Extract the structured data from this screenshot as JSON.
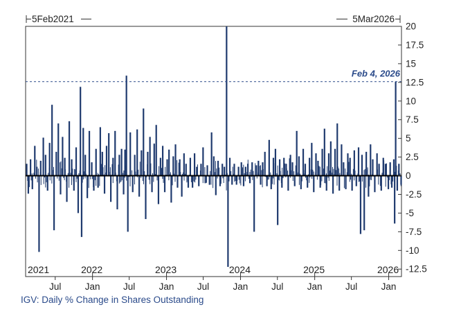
{
  "chart_data": {
    "type": "bar",
    "title": "IGV: Daily % Change in Shares Outstanding",
    "xlabel": "",
    "ylabel": "",
    "ylim": [
      -13.5,
      20
    ],
    "x_range": [
      "2021-02-05",
      "2026-03-05"
    ],
    "range_start_label": "5Feb2021",
    "range_end_label": "5Mar2026",
    "y_ticks": [
      20,
      17.5,
      15,
      12.5,
      10,
      7.5,
      5,
      2.5,
      0,
      -2.5,
      -5,
      -7.5,
      -10,
      -12.5
    ],
    "y_tick_labels": [
      "20",
      "17.5",
      "15",
      "12.5",
      "10",
      "7.5",
      "5",
      "2.5",
      "0",
      "-2.5",
      "-5",
      "-7.5",
      "-10",
      "-12.5"
    ],
    "year_labels": [
      {
        "label": "2021",
        "date": "2021-02-05"
      },
      {
        "label": "2022",
        "date": "2022-01-01"
      },
      {
        "label": "2023",
        "date": "2023-01-01"
      },
      {
        "label": "2024",
        "date": "2024-01-01"
      },
      {
        "label": "2025",
        "date": "2025-01-01"
      },
      {
        "label": "2026",
        "date": "2026-01-01"
      }
    ],
    "month_ticks": [
      {
        "label": "Jul",
        "date": "2021-07-01"
      },
      {
        "label": "Jan",
        "date": "2022-01-01"
      },
      {
        "label": "Jul",
        "date": "2022-07-01"
      },
      {
        "label": "Jan",
        "date": "2023-01-01"
      },
      {
        "label": "Jul",
        "date": "2023-07-01"
      },
      {
        "label": "Jan",
        "date": "2024-01-01"
      },
      {
        "label": "Jul",
        "date": "2024-07-01"
      },
      {
        "label": "Jan",
        "date": "2025-01-01"
      },
      {
        "label": "Jul",
        "date": "2025-07-01"
      },
      {
        "label": "Jan",
        "date": "2026-01-01"
      }
    ],
    "reference_line": {
      "value": 12.6,
      "label": "Feb 4, 2026"
    },
    "series": [
      {
        "name": "Daily % Change in Shares Outstanding",
        "points": [
          [
            "2021-02-10",
            1.6
          ],
          [
            "2021-02-18",
            -2.4
          ],
          [
            "2021-03-01",
            2.2
          ],
          [
            "2021-03-10",
            -1.8
          ],
          [
            "2021-03-22",
            4.0
          ],
          [
            "2021-04-01",
            1.2
          ],
          [
            "2021-04-12",
            -10.2
          ],
          [
            "2021-04-20",
            2.0
          ],
          [
            "2021-05-03",
            5.1
          ],
          [
            "2021-05-14",
            2.8
          ],
          [
            "2021-05-24",
            -2.0
          ],
          [
            "2021-06-03",
            4.4
          ],
          [
            "2021-06-15",
            9.5
          ],
          [
            "2021-06-25",
            -7.3
          ],
          [
            "2021-07-06",
            3.2
          ],
          [
            "2021-07-16",
            7.0
          ],
          [
            "2021-07-27",
            -2.5
          ],
          [
            "2021-08-06",
            5.2
          ],
          [
            "2021-08-17",
            2.4
          ],
          [
            "2021-08-27",
            -3.5
          ],
          [
            "2021-09-08",
            7.3
          ],
          [
            "2021-09-20",
            2.2
          ],
          [
            "2021-10-01",
            -2.0
          ],
          [
            "2021-10-12",
            3.8
          ],
          [
            "2021-10-22",
            -5.0
          ],
          [
            "2021-11-02",
            11.9
          ],
          [
            "2021-11-08",
            -8.2
          ],
          [
            "2021-11-16",
            6.4
          ],
          [
            "2021-11-26",
            2.8
          ],
          [
            "2021-12-06",
            -3.0
          ],
          [
            "2021-12-16",
            6.0
          ],
          [
            "2021-12-28",
            1.8
          ],
          [
            "2022-01-07",
            -2.0
          ],
          [
            "2022-01-18",
            3.6
          ],
          [
            "2022-01-28",
            -1.6
          ],
          [
            "2022-02-08",
            6.5
          ],
          [
            "2022-02-18",
            3.2
          ],
          [
            "2022-03-01",
            -2.4
          ],
          [
            "2022-03-11",
            4.0
          ],
          [
            "2022-03-22",
            5.7
          ],
          [
            "2022-04-01",
            -3.5
          ],
          [
            "2022-04-12",
            2.4
          ],
          [
            "2022-04-22",
            6.0
          ],
          [
            "2022-05-03",
            -4.5
          ],
          [
            "2022-05-13",
            2.8
          ],
          [
            "2022-05-24",
            3.6
          ],
          [
            "2022-06-03",
            -2.5
          ],
          [
            "2022-06-10",
            3.5
          ],
          [
            "2022-06-17",
            13.4
          ],
          [
            "2022-06-24",
            -7.5
          ],
          [
            "2022-07-06",
            5.8
          ],
          [
            "2022-07-18",
            -2.2
          ],
          [
            "2022-07-28",
            2.8
          ],
          [
            "2022-08-09",
            6.2
          ],
          [
            "2022-08-19",
            -2.8
          ],
          [
            "2022-08-30",
            3.4
          ],
          [
            "2022-09-09",
            9.0
          ],
          [
            "2022-09-20",
            -5.8
          ],
          [
            "2022-09-30",
            3.2
          ],
          [
            "2022-10-11",
            5.2
          ],
          [
            "2022-10-21",
            -2.2
          ],
          [
            "2022-11-01",
            4.3
          ],
          [
            "2022-11-11",
            6.8
          ],
          [
            "2022-11-22",
            -3.8
          ],
          [
            "2022-12-02",
            2.4
          ],
          [
            "2022-12-13",
            4.0
          ],
          [
            "2022-12-23",
            -2.2
          ],
          [
            "2023-01-04",
            2.2
          ],
          [
            "2023-01-13",
            3.5
          ],
          [
            "2023-01-24",
            -3.6
          ],
          [
            "2023-02-03",
            2.6
          ],
          [
            "2023-02-14",
            4.2
          ],
          [
            "2023-02-24",
            -1.6
          ],
          [
            "2023-03-07",
            2.2
          ],
          [
            "2023-03-17",
            -2.8
          ],
          [
            "2023-03-28",
            3.0
          ],
          [
            "2023-04-07",
            1.6
          ],
          [
            "2023-04-18",
            -1.6
          ],
          [
            "2023-04-28",
            2.4
          ],
          [
            "2023-05-09",
            -1.6
          ],
          [
            "2023-05-19",
            3.0
          ],
          [
            "2023-05-30",
            1.2
          ],
          [
            "2023-06-09",
            -1.4
          ],
          [
            "2023-06-20",
            1.6
          ],
          [
            "2023-06-30",
            3.8
          ],
          [
            "2023-07-11",
            -1.0
          ],
          [
            "2023-07-21",
            1.4
          ],
          [
            "2023-08-01",
            -1.2
          ],
          [
            "2023-08-11",
            5.8
          ],
          [
            "2023-08-22",
            2.6
          ],
          [
            "2023-09-01",
            -2.6
          ],
          [
            "2023-09-12",
            2.0
          ],
          [
            "2023-09-22",
            -1.4
          ],
          [
            "2023-10-03",
            1.6
          ],
          [
            "2023-10-13",
            1.2
          ],
          [
            "2023-10-24",
            20.0
          ],
          [
            "2023-10-31",
            -12.2
          ],
          [
            "2023-11-09",
            2.4
          ],
          [
            "2023-11-20",
            -1.2
          ],
          [
            "2023-12-01",
            1.6
          ],
          [
            "2023-12-12",
            -1.2
          ],
          [
            "2023-12-22",
            1.2
          ],
          [
            "2024-01-05",
            1.8
          ],
          [
            "2024-01-16",
            -1.4
          ],
          [
            "2024-01-26",
            1.2
          ],
          [
            "2024-02-06",
            1.6
          ],
          [
            "2024-02-16",
            -1.0
          ],
          [
            "2024-02-27",
            1.8
          ],
          [
            "2024-03-08",
            -7.5
          ],
          [
            "2024-03-19",
            1.4
          ],
          [
            "2024-03-29",
            2.0
          ],
          [
            "2024-04-09",
            -1.2
          ],
          [
            "2024-04-19",
            1.8
          ],
          [
            "2024-04-30",
            3.2
          ],
          [
            "2024-05-10",
            -1.4
          ],
          [
            "2024-05-21",
            4.8
          ],
          [
            "2024-05-31",
            -1.8
          ],
          [
            "2024-06-11",
            2.4
          ],
          [
            "2024-06-21",
            3.6
          ],
          [
            "2024-07-02",
            -6.6
          ],
          [
            "2024-07-12",
            2.2
          ],
          [
            "2024-07-23",
            -1.6
          ],
          [
            "2024-08-02",
            2.4
          ],
          [
            "2024-08-13",
            1.6
          ],
          [
            "2024-08-23",
            -2.0
          ],
          [
            "2024-09-03",
            2.8
          ],
          [
            "2024-09-13",
            1.8
          ],
          [
            "2024-09-24",
            -1.4
          ],
          [
            "2024-10-04",
            6.0
          ],
          [
            "2024-10-15",
            2.6
          ],
          [
            "2024-10-25",
            -1.8
          ],
          [
            "2024-11-05",
            3.6
          ],
          [
            "2024-11-15",
            1.6
          ],
          [
            "2024-11-26",
            -1.6
          ],
          [
            "2024-12-06",
            2.4
          ],
          [
            "2024-12-17",
            4.4
          ],
          [
            "2024-12-27",
            -2.2
          ],
          [
            "2025-01-07",
            3.0
          ],
          [
            "2025-01-17",
            2.0
          ],
          [
            "2025-01-28",
            -1.6
          ],
          [
            "2025-02-07",
            3.6
          ],
          [
            "2025-02-18",
            6.3
          ],
          [
            "2025-02-28",
            -2.0
          ],
          [
            "2025-03-11",
            3.0
          ],
          [
            "2025-03-21",
            4.6
          ],
          [
            "2025-04-01",
            -2.4
          ],
          [
            "2025-04-11",
            3.6
          ],
          [
            "2025-04-22",
            7.0
          ],
          [
            "2025-05-02",
            -2.0
          ],
          [
            "2025-05-13",
            4.2
          ],
          [
            "2025-05-23",
            1.8
          ],
          [
            "2025-06-03",
            -1.8
          ],
          [
            "2025-06-13",
            3.0
          ],
          [
            "2025-06-24",
            2.4
          ],
          [
            "2025-07-04",
            -2.0
          ],
          [
            "2025-07-15",
            3.4
          ],
          [
            "2025-07-25",
            -1.4
          ],
          [
            "2025-08-05",
            3.8
          ],
          [
            "2025-08-15",
            -7.8
          ],
          [
            "2025-08-22",
            2.8
          ],
          [
            "2025-09-02",
            -7.3
          ],
          [
            "2025-09-12",
            3.2
          ],
          [
            "2025-09-23",
            -2.8
          ],
          [
            "2025-10-03",
            4.2
          ],
          [
            "2025-10-14",
            2.2
          ],
          [
            "2025-10-24",
            -2.2
          ],
          [
            "2025-11-04",
            3.0
          ],
          [
            "2025-11-14",
            1.6
          ],
          [
            "2025-11-25",
            -2.0
          ],
          [
            "2025-12-05",
            2.4
          ],
          [
            "2025-12-16",
            1.6
          ],
          [
            "2025-12-30",
            -1.8
          ],
          [
            "2026-01-08",
            1.8
          ],
          [
            "2026-01-16",
            -1.6
          ],
          [
            "2026-01-26",
            2.2
          ],
          [
            "2026-01-30",
            -6.4
          ],
          [
            "2026-02-04",
            12.6
          ],
          [
            "2026-02-12",
            -2.0
          ],
          [
            "2026-02-20",
            1.6
          ],
          [
            "2026-03-03",
            -1.2
          ]
        ]
      }
    ],
    "noise_amplitude": 1.6,
    "color": "#1f3a6e"
  }
}
